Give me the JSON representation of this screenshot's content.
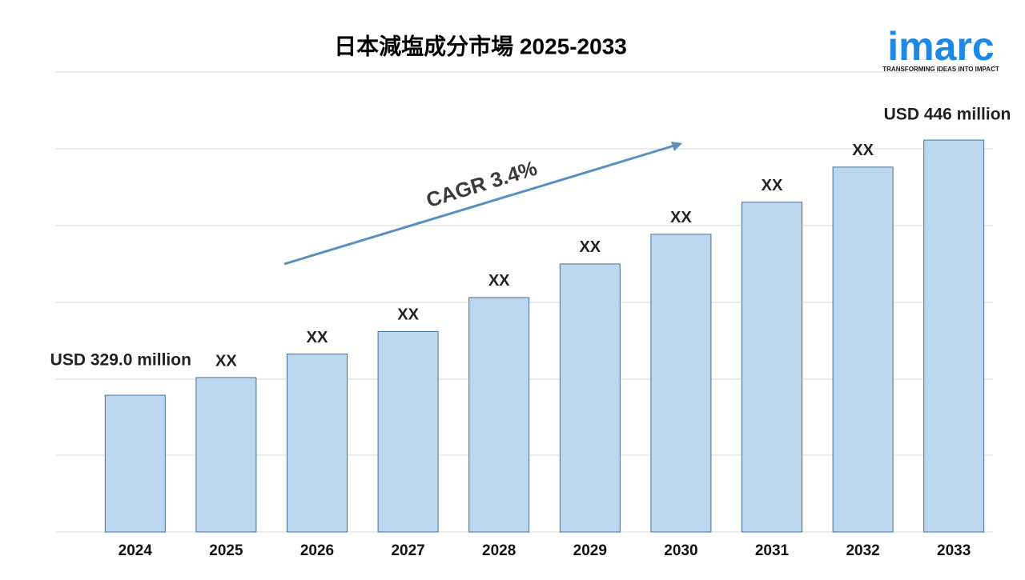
{
  "chart_data": {
    "type": "bar",
    "title": "日本減塩成分市場 2025-2033",
    "annotation": "CAGR 3.4%",
    "categories": [
      "2024",
      "2025",
      "2026",
      "2027",
      "2028",
      "2029",
      "2030",
      "2031",
      "2032",
      "2033"
    ],
    "values": [
      329.0,
      337.1,
      347.9,
      358.2,
      373.8,
      389.2,
      402.8,
      417.5,
      433.6,
      446
    ],
    "value_labels": [
      "USD 329.0 million",
      "XX",
      "XX",
      "XX",
      "XX",
      "XX",
      "XX",
      "XX",
      "XX",
      "USD 446 million"
    ],
    "color": "#bdd7ee",
    "edge_color": "#41719c",
    "ylim": [
      266.3,
      477.2
    ],
    "grid": true
  },
  "logo": {
    "name": "imarc",
    "tagline": "TRANSFORMING IDEAS INTO IMPACT"
  }
}
